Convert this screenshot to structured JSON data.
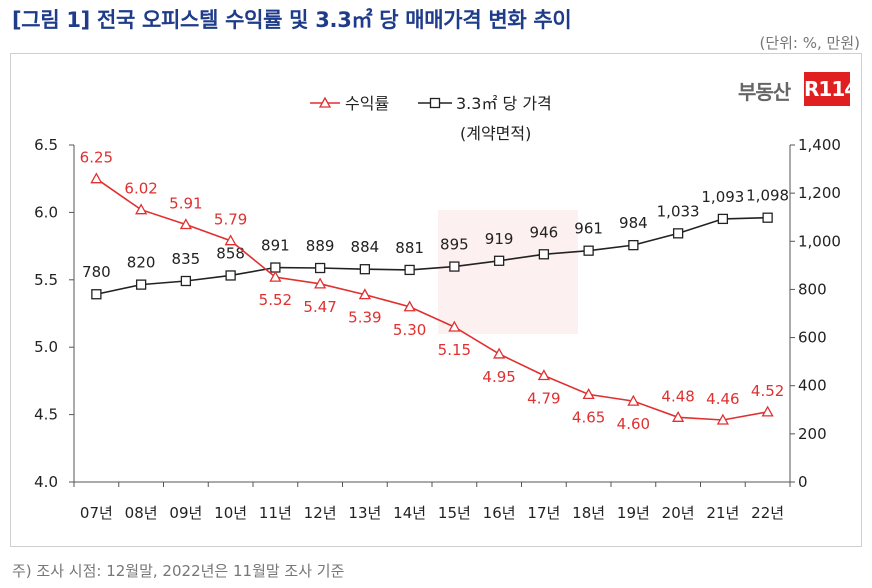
{
  "title": "[그림 1] 전국 오피스텔 수익률 및 3.3㎡ 당 매매가격 변화 추이",
  "unit_note": "(단위: %, 만원)",
  "footnote": "주) 조사 시점: 12월말, 2022년은 11월말 조사 기준",
  "logo": {
    "text": "부동산",
    "badge": "R114"
  },
  "colors": {
    "yield": "#e03030",
    "price": "#222222",
    "title": "#1f3c8a"
  },
  "chart_data": {
    "type": "line",
    "categories": [
      "07년",
      "08년",
      "09년",
      "10년",
      "11년",
      "12년",
      "13년",
      "14년",
      "15년",
      "16년",
      "17년",
      "18년",
      "19년",
      "20년",
      "21년",
      "22년"
    ],
    "series": [
      {
        "name": "수익률",
        "axis": "left",
        "marker": "triangle",
        "values": [
          6.25,
          6.02,
          5.91,
          5.79,
          5.52,
          5.47,
          5.39,
          5.3,
          5.15,
          4.95,
          4.79,
          4.65,
          4.6,
          4.48,
          4.46,
          4.52
        ],
        "labels": [
          "6.25",
          "6.02",
          "5.91",
          "5.79",
          "5.52",
          "5.47",
          "5.39",
          "5.30",
          "5.15",
          "4.95",
          "4.79",
          "4.65",
          "4.60",
          "4.48",
          "4.46",
          "4.52"
        ]
      },
      {
        "name": "3.3㎡ 당 가격",
        "axis": "right",
        "marker": "square",
        "values": [
          780,
          820,
          835,
          858,
          891,
          889,
          884,
          881,
          895,
          919,
          946,
          961,
          984,
          1033,
          1093,
          1098
        ],
        "labels": [
          "780",
          "820",
          "835",
          "858",
          "891",
          "889",
          "884",
          "881",
          "895",
          "919",
          "946",
          "961",
          "984",
          "1,033",
          "1,093",
          "1,098"
        ]
      }
    ],
    "legend": {
      "yield": "수익률",
      "price": "3.3㎡ 당 가격",
      "price_sub": "(계약면적)",
      "position": "top"
    },
    "y_left": {
      "range": [
        4.0,
        6.5
      ],
      "ticks": [
        "4.0",
        "4.5",
        "5.0",
        "5.5",
        "6.0",
        "6.5"
      ]
    },
    "y_right": {
      "range": [
        0,
        1400
      ],
      "ticks": [
        "0",
        "200",
        "400",
        "600",
        "800",
        "1,000",
        "1,200",
        "1,400"
      ]
    },
    "grid": false
  }
}
